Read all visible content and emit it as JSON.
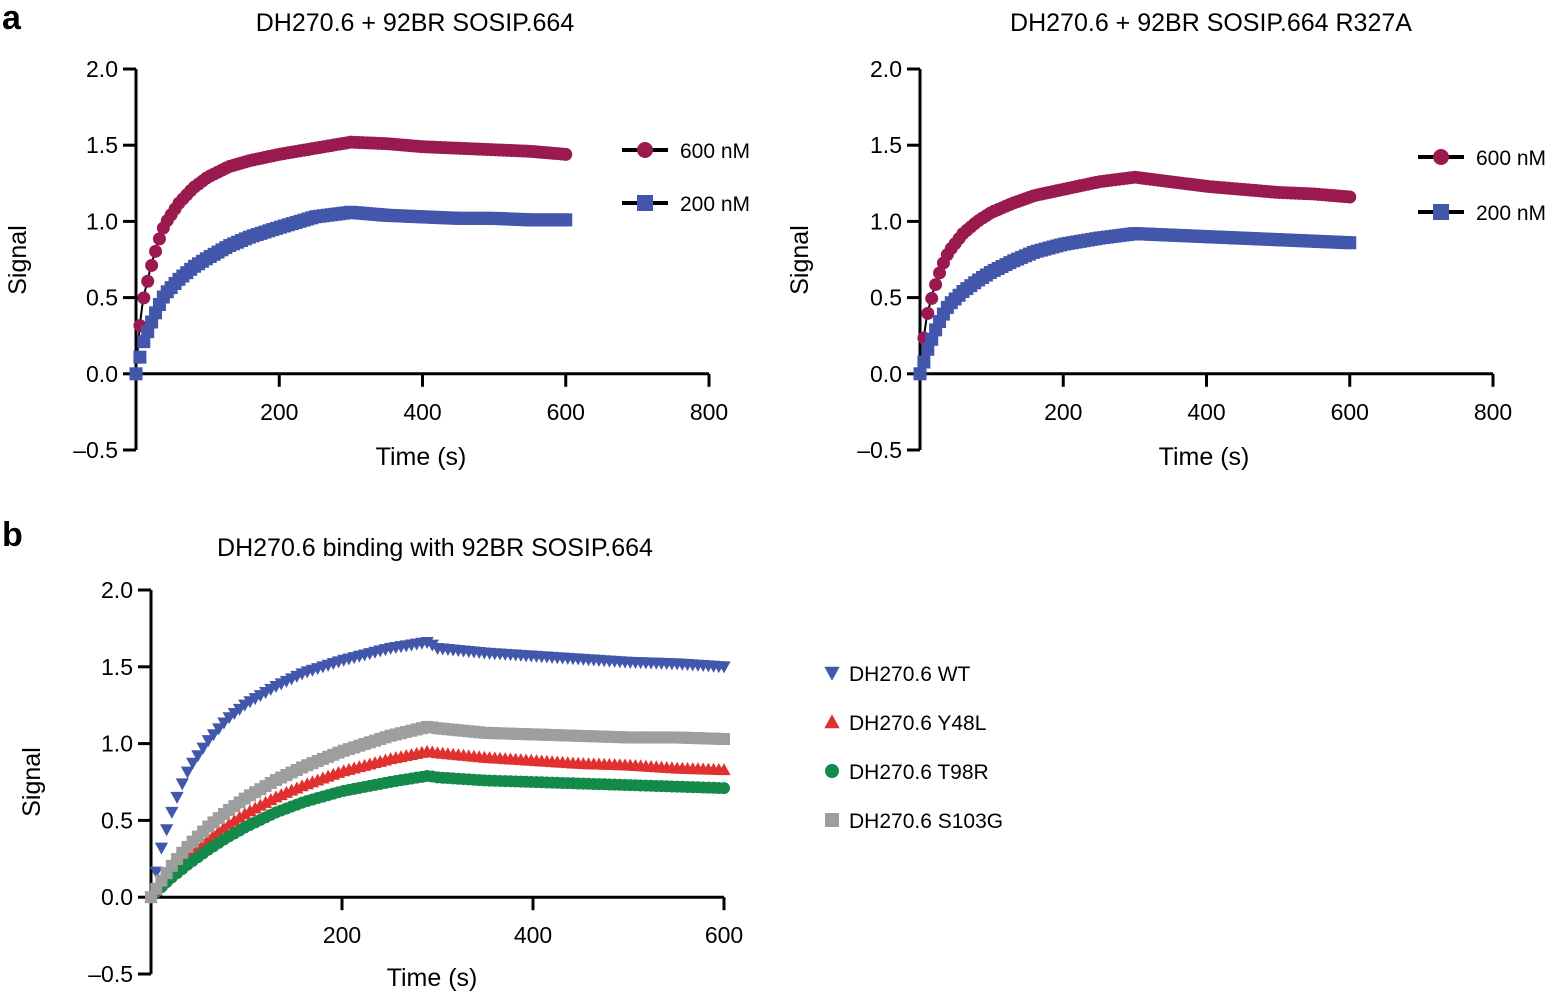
{
  "panels": {
    "a": "a",
    "b": "b"
  },
  "chart_data": [
    {
      "type": "scatter",
      "title": "DH270.6 + 92BR SOSIP.664",
      "xlabel": "Time (s)",
      "ylabel": "Signal",
      "xlim": [
        0,
        800
      ],
      "ylim": [
        -0.5,
        2.0
      ],
      "xticks": [
        200,
        400,
        600,
        800
      ],
      "yticks": [
        -0.5,
        0.0,
        0.5,
        1.0,
        1.5,
        2.0
      ],
      "ytick_labels": [
        "–0.5",
        "0.0",
        "0.5",
        "1.0",
        "1.5",
        "2.0"
      ],
      "legend_position": "right",
      "fit_line_color": "#000000",
      "series": [
        {
          "name": "600 nM",
          "marker": "circle",
          "color": "#9a1a50",
          "x": [
            0,
            5,
            10,
            20,
            30,
            40,
            60,
            80,
            100,
            130,
            160,
            200,
            250,
            300,
            350,
            400,
            450,
            500,
            550,
            600
          ],
          "y": [
            0.0,
            0.3,
            0.48,
            0.68,
            0.85,
            0.98,
            1.12,
            1.22,
            1.29,
            1.36,
            1.4,
            1.44,
            1.48,
            1.52,
            1.51,
            1.49,
            1.48,
            1.47,
            1.46,
            1.44
          ]
        },
        {
          "name": "200 nM",
          "marker": "square",
          "color": "#4257ab",
          "x": [
            0,
            5,
            10,
            20,
            30,
            40,
            60,
            80,
            100,
            130,
            160,
            200,
            250,
            300,
            350,
            400,
            450,
            500,
            550,
            600
          ],
          "y": [
            0.0,
            0.1,
            0.2,
            0.32,
            0.43,
            0.52,
            0.62,
            0.7,
            0.76,
            0.84,
            0.9,
            0.96,
            1.03,
            1.06,
            1.04,
            1.03,
            1.02,
            1.02,
            1.01,
            1.01
          ]
        }
      ]
    },
    {
      "type": "scatter",
      "title": "DH270.6 + 92BR SOSIP.664 R327A",
      "xlabel": "Time (s)",
      "ylabel": "Signal",
      "xlim": [
        0,
        800
      ],
      "ylim": [
        -0.5,
        2.0
      ],
      "xticks": [
        200,
        400,
        600,
        800
      ],
      "yticks": [
        -0.5,
        0.0,
        0.5,
        1.0,
        1.5,
        2.0
      ],
      "ytick_labels": [
        "–0.5",
        "0.0",
        "0.5",
        "1.0",
        "1.5",
        "2.0"
      ],
      "legend_position": "right",
      "fit_line_color": "#000000",
      "series": [
        {
          "name": "600 nM",
          "marker": "circle",
          "color": "#9a1a50",
          "x": [
            0,
            5,
            10,
            20,
            30,
            40,
            60,
            80,
            100,
            130,
            160,
            200,
            250,
            300,
            350,
            400,
            450,
            500,
            550,
            600
          ],
          "y": [
            0.0,
            0.22,
            0.38,
            0.56,
            0.7,
            0.8,
            0.92,
            1.0,
            1.06,
            1.12,
            1.17,
            1.21,
            1.26,
            1.29,
            1.26,
            1.23,
            1.21,
            1.19,
            1.18,
            1.16
          ]
        },
        {
          "name": "200 nM",
          "marker": "square",
          "color": "#4257ab",
          "x": [
            0,
            5,
            10,
            20,
            30,
            40,
            60,
            80,
            100,
            130,
            160,
            200,
            250,
            300,
            350,
            400,
            450,
            500,
            550,
            600
          ],
          "y": [
            0.0,
            0.07,
            0.15,
            0.27,
            0.37,
            0.45,
            0.54,
            0.61,
            0.67,
            0.74,
            0.8,
            0.85,
            0.89,
            0.92,
            0.91,
            0.9,
            0.89,
            0.88,
            0.87,
            0.86
          ]
        }
      ]
    },
    {
      "type": "scatter",
      "title": "DH270.6 binding with 92BR SOSIP.664",
      "xlabel": "Time (s)",
      "ylabel": "Signal",
      "xlim": [
        0,
        600
      ],
      "ylim": [
        -0.5,
        2.0
      ],
      "xticks": [
        200,
        400,
        600
      ],
      "yticks": [
        -0.5,
        0.0,
        0.5,
        1.0,
        1.5,
        2.0
      ],
      "ytick_labels": [
        "–0.5",
        "0.0",
        "0.5",
        "1.0",
        "1.5",
        "2.0"
      ],
      "legend_position": "right",
      "series": [
        {
          "name": "DH270.6 WT",
          "marker": "triangle-down",
          "color": "#4257ab",
          "x": [
            0,
            5,
            10,
            20,
            30,
            40,
            60,
            80,
            100,
            130,
            160,
            200,
            250,
            290,
            300,
            350,
            400,
            450,
            500,
            550,
            600
          ],
          "y": [
            0.0,
            0.15,
            0.3,
            0.52,
            0.7,
            0.84,
            1.02,
            1.16,
            1.26,
            1.37,
            1.46,
            1.54,
            1.62,
            1.66,
            1.62,
            1.59,
            1.57,
            1.55,
            1.53,
            1.52,
            1.5
          ]
        },
        {
          "name": "DH270.6 Y48L",
          "marker": "triangle-up",
          "color": "#e0302f",
          "x": [
            0,
            5,
            10,
            20,
            30,
            40,
            60,
            80,
            100,
            130,
            160,
            200,
            250,
            290,
            300,
            350,
            400,
            450,
            500,
            550,
            600
          ],
          "y": [
            0.0,
            0.04,
            0.08,
            0.15,
            0.21,
            0.27,
            0.38,
            0.47,
            0.55,
            0.65,
            0.73,
            0.82,
            0.9,
            0.95,
            0.94,
            0.91,
            0.89,
            0.87,
            0.86,
            0.84,
            0.83
          ]
        },
        {
          "name": "DH270.6 T98R",
          "marker": "circle",
          "color": "#148a4a",
          "x": [
            0,
            5,
            10,
            20,
            30,
            40,
            60,
            80,
            100,
            130,
            160,
            200,
            250,
            290,
            300,
            350,
            400,
            450,
            500,
            550,
            600
          ],
          "y": [
            0.0,
            0.03,
            0.06,
            0.12,
            0.17,
            0.22,
            0.31,
            0.39,
            0.46,
            0.55,
            0.62,
            0.69,
            0.75,
            0.79,
            0.78,
            0.76,
            0.75,
            0.74,
            0.73,
            0.72,
            0.71
          ]
        },
        {
          "name": "DH270.6 S103G",
          "marker": "square",
          "color": "#9e9e9e",
          "x": [
            0,
            5,
            10,
            20,
            30,
            40,
            60,
            80,
            100,
            130,
            160,
            200,
            250,
            290,
            300,
            350,
            400,
            450,
            500,
            550,
            600
          ],
          "y": [
            0.0,
            0.05,
            0.1,
            0.19,
            0.27,
            0.34,
            0.46,
            0.56,
            0.65,
            0.76,
            0.85,
            0.95,
            1.05,
            1.11,
            1.1,
            1.07,
            1.06,
            1.05,
            1.04,
            1.04,
            1.03
          ]
        }
      ]
    }
  ]
}
